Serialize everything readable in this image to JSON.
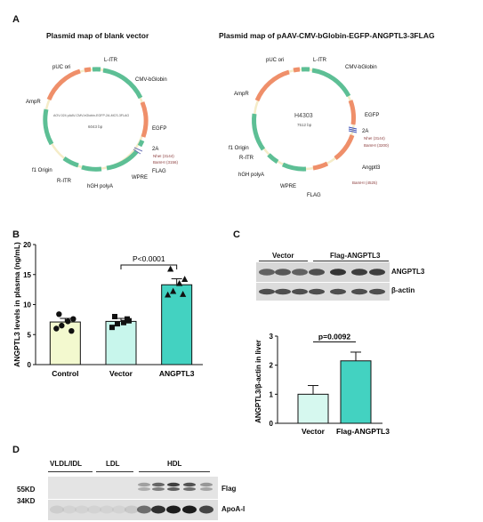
{
  "panelA": {
    "letter": "A",
    "left": {
      "title": "Plasmid map of blank vector",
      "center_name": "AOV-024 pAAV-CMV-bGlobin-EGFP-2A-MCS-3FLAG",
      "center_size": "6043 bp",
      "labels": {
        "puc": "pUC ori",
        "litr": "L-ITR",
        "cmv": "CMV-bGlobin",
        "ampr": "AmpR",
        "egfp": "EGFP",
        "twoa": "2A",
        "nhe": "NheI (3144)",
        "bam": "BamHI (3156)",
        "flag": "FLAG",
        "f1": "f1 Origin",
        "ritr": "R-ITR",
        "wpre": "WPRE",
        "hgh": "hGH polyA"
      }
    },
    "right": {
      "title": "Plasmid map of  pAAV-CMV-bGlobin-EGFP-ANGPTL3-3FLAG",
      "center_name": "H4303",
      "center_size": "7512 bp",
      "labels": {
        "puc": "pUC ori",
        "litr": "L-ITR",
        "cmv": "CMV-bGlobin",
        "ampr": "AmpR",
        "egfp": "EGFP",
        "twoa": "2A",
        "nhe": "NheI (3144)",
        "bam": "BamHI (3200)",
        "f1": "f1 Origin",
        "ritr": "R-ITR",
        "angptl3": "Angptl3",
        "hgh": "hGH polyA",
        "bam2": "BamHI (4525)",
        "wpre": "WPRE",
        "flag": "FLAG"
      }
    }
  },
  "panelB": {
    "letter": "B",
    "chart_data": {
      "type": "bar",
      "categories": [
        "Control",
        "Vector",
        "ANGPTL3"
      ],
      "values": [
        7.1,
        7.2,
        13.3
      ],
      "errors": [
        0.6,
        0.5,
        1.0
      ],
      "points": [
        [
          6.0,
          6.5,
          7.2,
          7.6,
          8.4,
          5.6
        ],
        [
          6.2,
          6.8,
          7.0,
          7.3,
          8.0,
          7.6
        ],
        [
          11.6,
          12.2,
          13.5,
          14.2,
          15.9,
          11.7
        ]
      ],
      "markers": [
        "circle",
        "square",
        "triangle"
      ],
      "colors": [
        "#f3f9cf",
        "#c8f6ec",
        "#43d2c1"
      ],
      "ylabel": "ANGPTL3 levels in plasma (ng/mL)",
      "ylim": [
        0,
        20
      ],
      "yticks": [
        0,
        5,
        10,
        15,
        20
      ],
      "annotation": "P<0.0001"
    }
  },
  "panelC": {
    "letter": "C",
    "blot": {
      "group_vector": "Vector",
      "group_flag": "Flag-ANGPTL3",
      "band1": "ANGPTL3",
      "band2": "β-actin"
    },
    "chart_data": {
      "type": "bar",
      "categories": [
        "Vector",
        "Flag-ANGPTL3"
      ],
      "values": [
        1.0,
        2.15
      ],
      "errors": [
        0.3,
        0.3
      ],
      "colors": [
        "#d6f8ef",
        "#43d2c1"
      ],
      "ylabel": "ANGPTL3/β-actin in liver",
      "ylim": [
        0,
        3
      ],
      "yticks": [
        0,
        1,
        2,
        3
      ],
      "annotation": "p=0.0092"
    }
  },
  "panelD": {
    "letter": "D",
    "fractions": [
      "VLDL/IDL",
      "LDL",
      "HDL"
    ],
    "markers": [
      "55KD",
      "34KD"
    ],
    "bands": [
      "Flag",
      "ApoA-I"
    ]
  }
}
